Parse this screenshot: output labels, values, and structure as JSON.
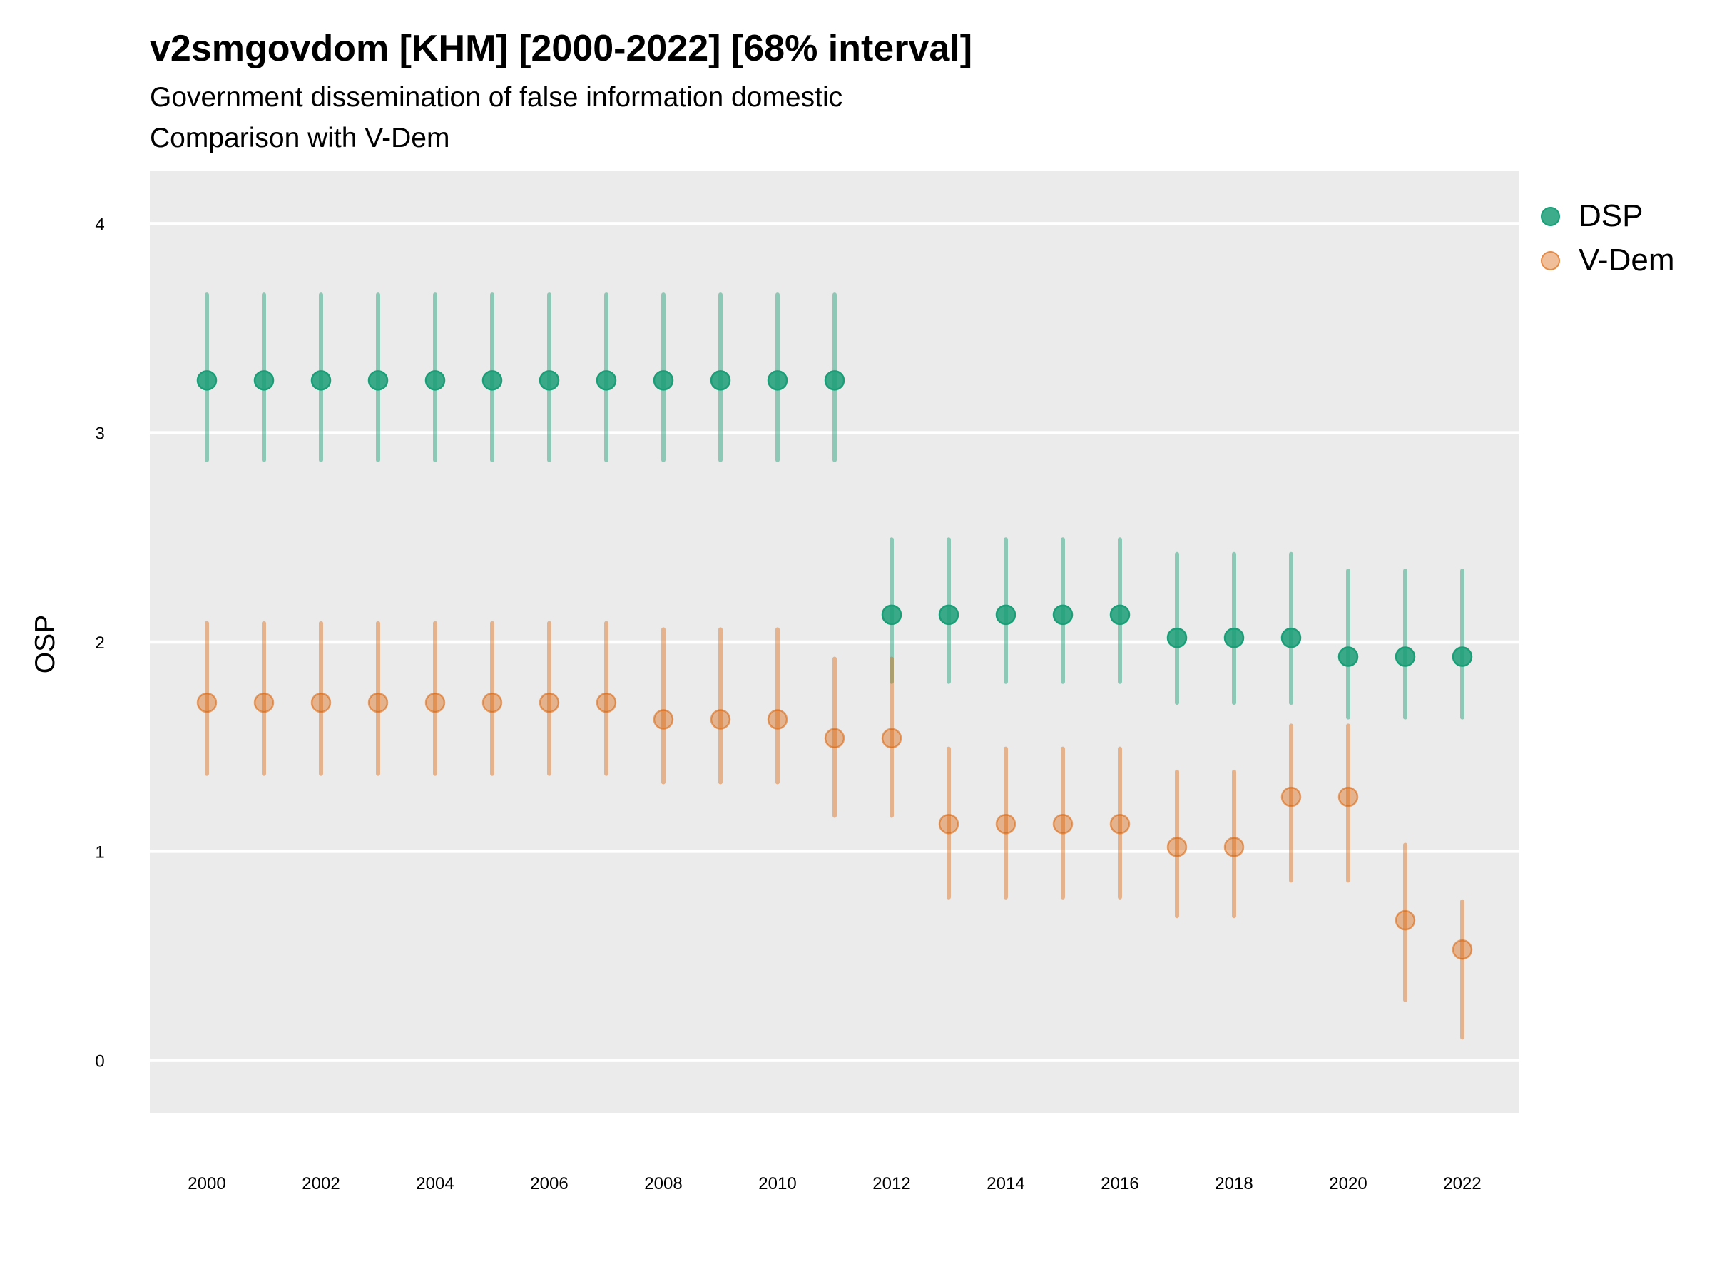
{
  "title": "v2smgovdom [KHM] [2000-2022] [68% interval]",
  "subtitle": "Government dissemination of false information domestic",
  "subtitle2": "Comparison with V-Dem",
  "chart_data": {
    "type": "scatter",
    "title": "v2smgovdom [KHM] [2000-2022] [68% interval]",
    "subtitle": [
      "Government dissemination of false information domestic",
      "Comparison with V-Dem"
    ],
    "xlabel": "",
    "ylabel": "OSP",
    "ylim": [
      -0.25,
      4.25
    ],
    "xlim": [
      1999.0,
      2023.0
    ],
    "yticks": [
      0,
      1,
      2,
      3,
      4
    ],
    "xticks": [
      2000,
      2002,
      2004,
      2006,
      2008,
      2010,
      2012,
      2014,
      2016,
      2018,
      2020,
      2022
    ],
    "grid": true,
    "legend_position": "right",
    "x": [
      2000,
      2001,
      2002,
      2003,
      2004,
      2005,
      2006,
      2007,
      2008,
      2009,
      2010,
      2011,
      2012,
      2013,
      2014,
      2015,
      2016,
      2017,
      2018,
      2019,
      2020,
      2021,
      2022
    ],
    "series": [
      {
        "name": "DSP",
        "color": "#1b9e77",
        "values": [
          3.25,
          3.25,
          3.25,
          3.25,
          3.25,
          3.25,
          3.25,
          3.25,
          3.25,
          3.25,
          3.25,
          3.25,
          2.13,
          2.13,
          2.13,
          2.13,
          2.13,
          2.02,
          2.02,
          2.02,
          1.93,
          1.93,
          1.93
        ],
        "upper": [
          3.66,
          3.66,
          3.66,
          3.66,
          3.66,
          3.66,
          3.66,
          3.66,
          3.66,
          3.66,
          3.66,
          3.66,
          2.49,
          2.49,
          2.49,
          2.49,
          2.49,
          2.42,
          2.42,
          2.42,
          2.34,
          2.34,
          2.34
        ],
        "lower": [
          2.87,
          2.87,
          2.87,
          2.87,
          2.87,
          2.87,
          2.87,
          2.87,
          2.87,
          2.87,
          2.87,
          2.87,
          1.81,
          1.81,
          1.81,
          1.81,
          1.81,
          1.71,
          1.71,
          1.71,
          1.64,
          1.64,
          1.64
        ]
      },
      {
        "name": "V-Dem",
        "color": "#d95f02",
        "values": [
          1.71,
          1.71,
          1.71,
          1.71,
          1.71,
          1.71,
          1.71,
          1.71,
          1.63,
          1.63,
          1.63,
          1.54,
          1.54,
          1.13,
          1.13,
          1.13,
          1.13,
          1.02,
          1.02,
          1.26,
          1.26,
          0.67,
          0.53
        ],
        "upper": [
          2.09,
          2.09,
          2.09,
          2.09,
          2.09,
          2.09,
          2.09,
          2.09,
          2.06,
          2.06,
          2.06,
          1.92,
          1.92,
          1.49,
          1.49,
          1.49,
          1.49,
          1.38,
          1.38,
          1.6,
          1.6,
          1.03,
          0.76
        ],
        "lower": [
          1.37,
          1.37,
          1.37,
          1.37,
          1.37,
          1.37,
          1.37,
          1.37,
          1.33,
          1.33,
          1.33,
          1.17,
          1.17,
          0.78,
          0.78,
          0.78,
          0.78,
          0.69,
          0.69,
          0.86,
          0.86,
          0.29,
          0.11
        ]
      }
    ]
  },
  "legend": [
    {
      "label": "DSP"
    },
    {
      "label": "V-Dem"
    }
  ]
}
